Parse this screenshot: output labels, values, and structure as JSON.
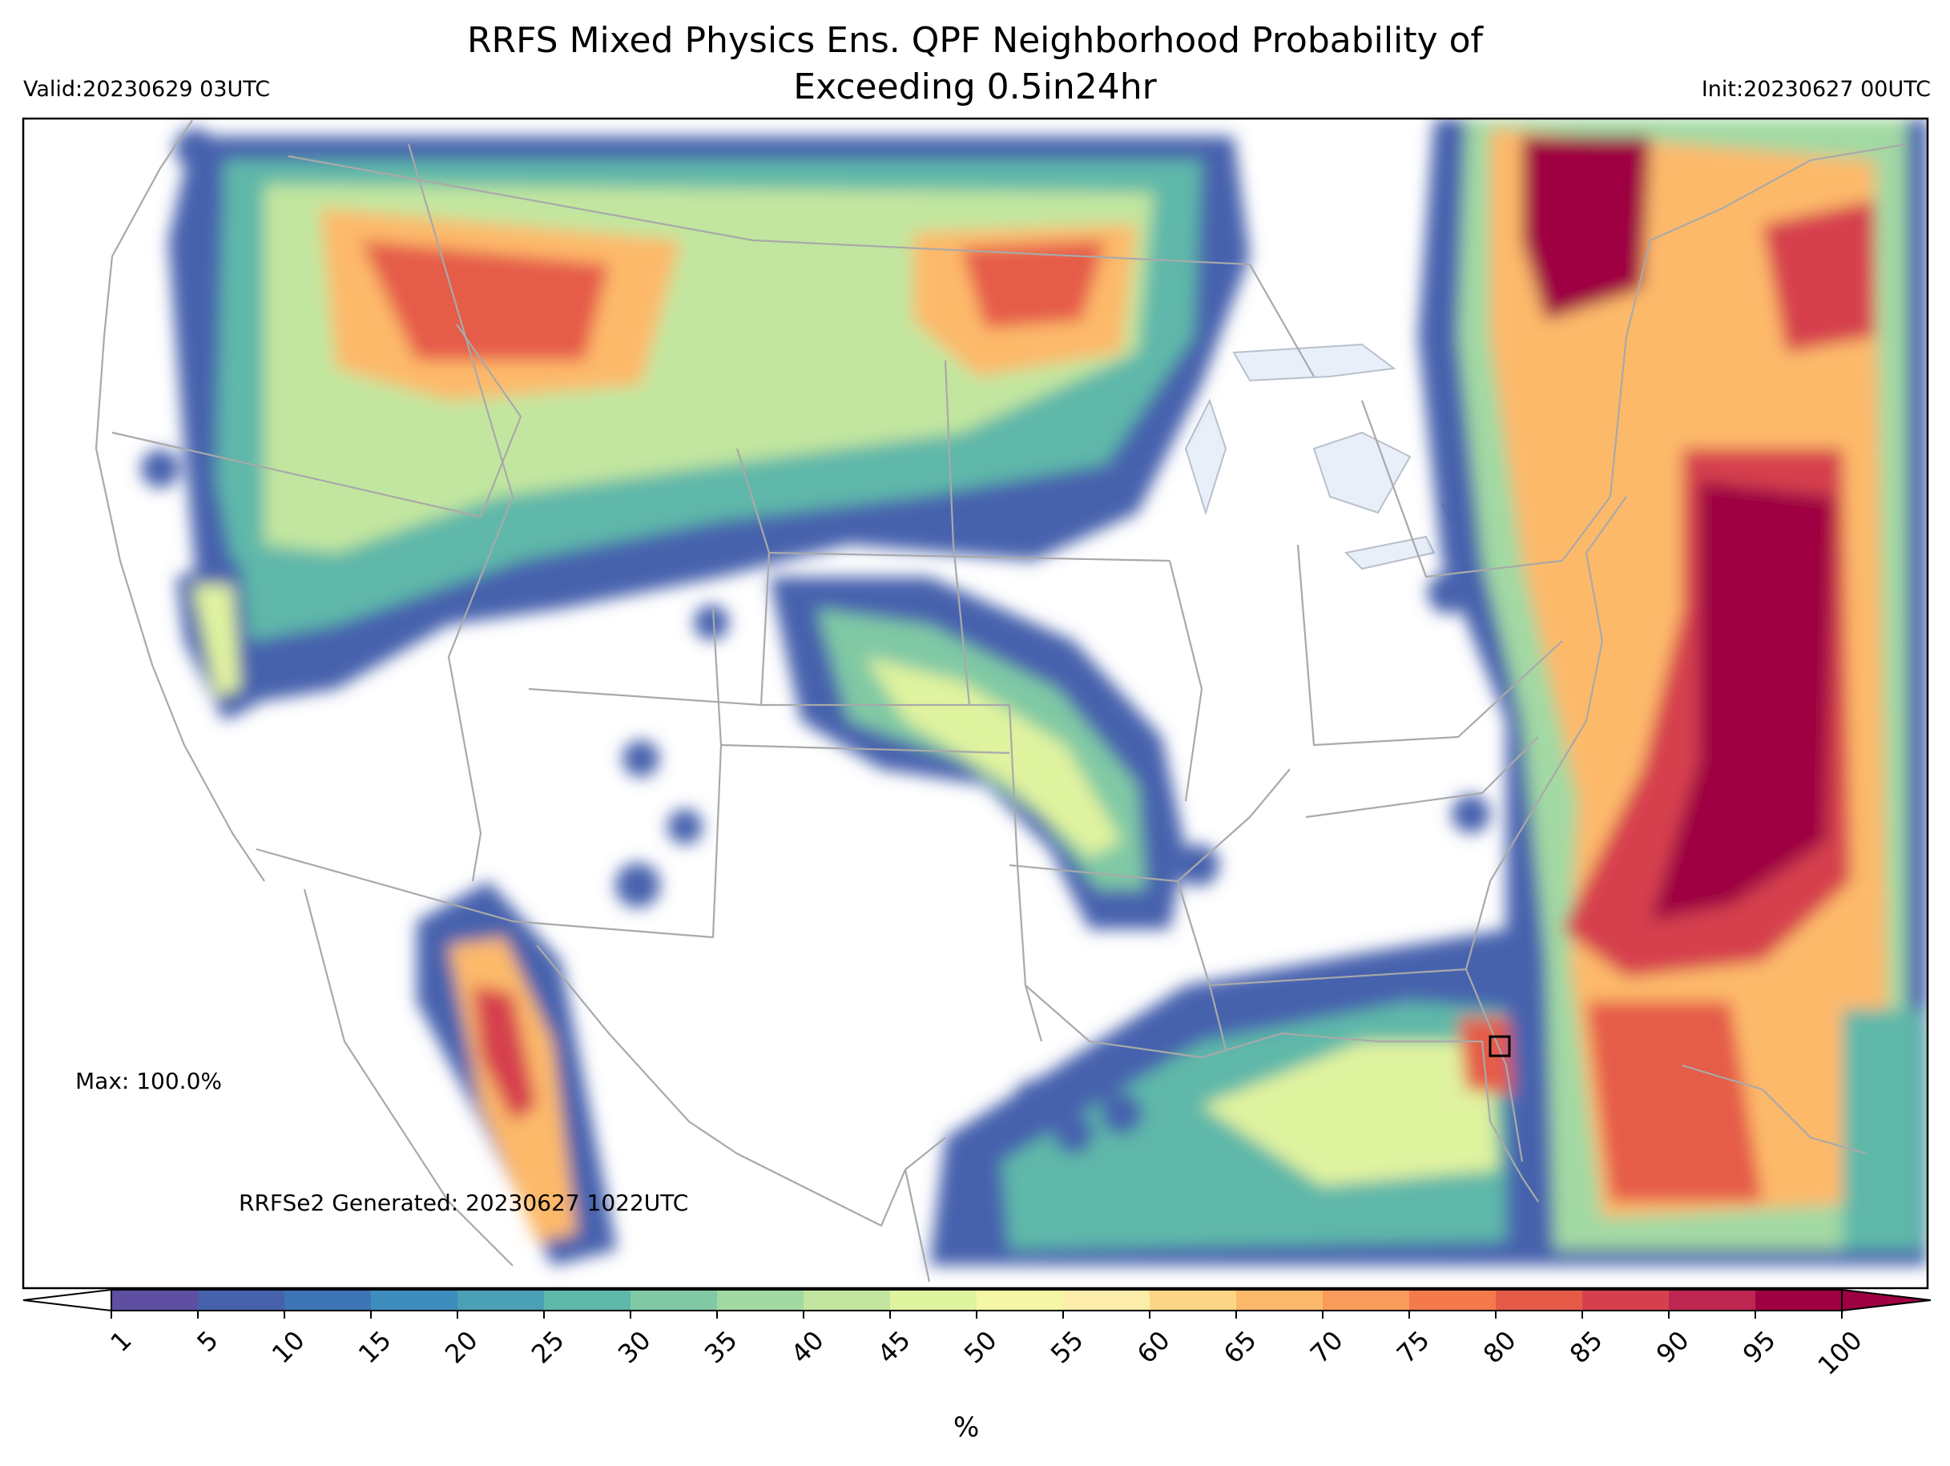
{
  "header": {
    "title_line1": "RRFS Mixed Physics Ens. QPF Neighborhood Probability of",
    "title_line2": "Exceeding 0.5in24hr",
    "valid": "Valid:20230629 03UTC",
    "init": "Init:20230627 00UTC"
  },
  "annotations": {
    "max": "Max: 100.0%",
    "generated": "RRFSe2 Generated: 20230627 1022UTC"
  },
  "colorbar": {
    "unit_label": "%",
    "ticks": [
      "1",
      "5",
      "10",
      "15",
      "20",
      "25",
      "30",
      "35",
      "40",
      "45",
      "50",
      "55",
      "60",
      "65",
      "70",
      "75",
      "80",
      "85",
      "90",
      "95",
      "100"
    ],
    "colors": [
      "#5e4fa2",
      "#4662ad",
      "#3d75b7",
      "#3d8dbd",
      "#4aa0b4",
      "#5fb8a9",
      "#80c9a4",
      "#a2d9a3",
      "#c2e69f",
      "#e0f39f",
      "#f4f8a6",
      "#fcedaa",
      "#fdd586",
      "#fdb96b",
      "#f99b5a",
      "#f47a4c",
      "#e55b48",
      "#d6404e",
      "#bc2650",
      "#9e0142"
    ],
    "under_color": "#ffffff",
    "over_color": "#9e0142"
  },
  "map": {
    "projection": "Lambert conformal CONUS",
    "lakes_color": "#e8eef8",
    "border_color": "#a6a6a6",
    "marker": "max-location square"
  }
}
